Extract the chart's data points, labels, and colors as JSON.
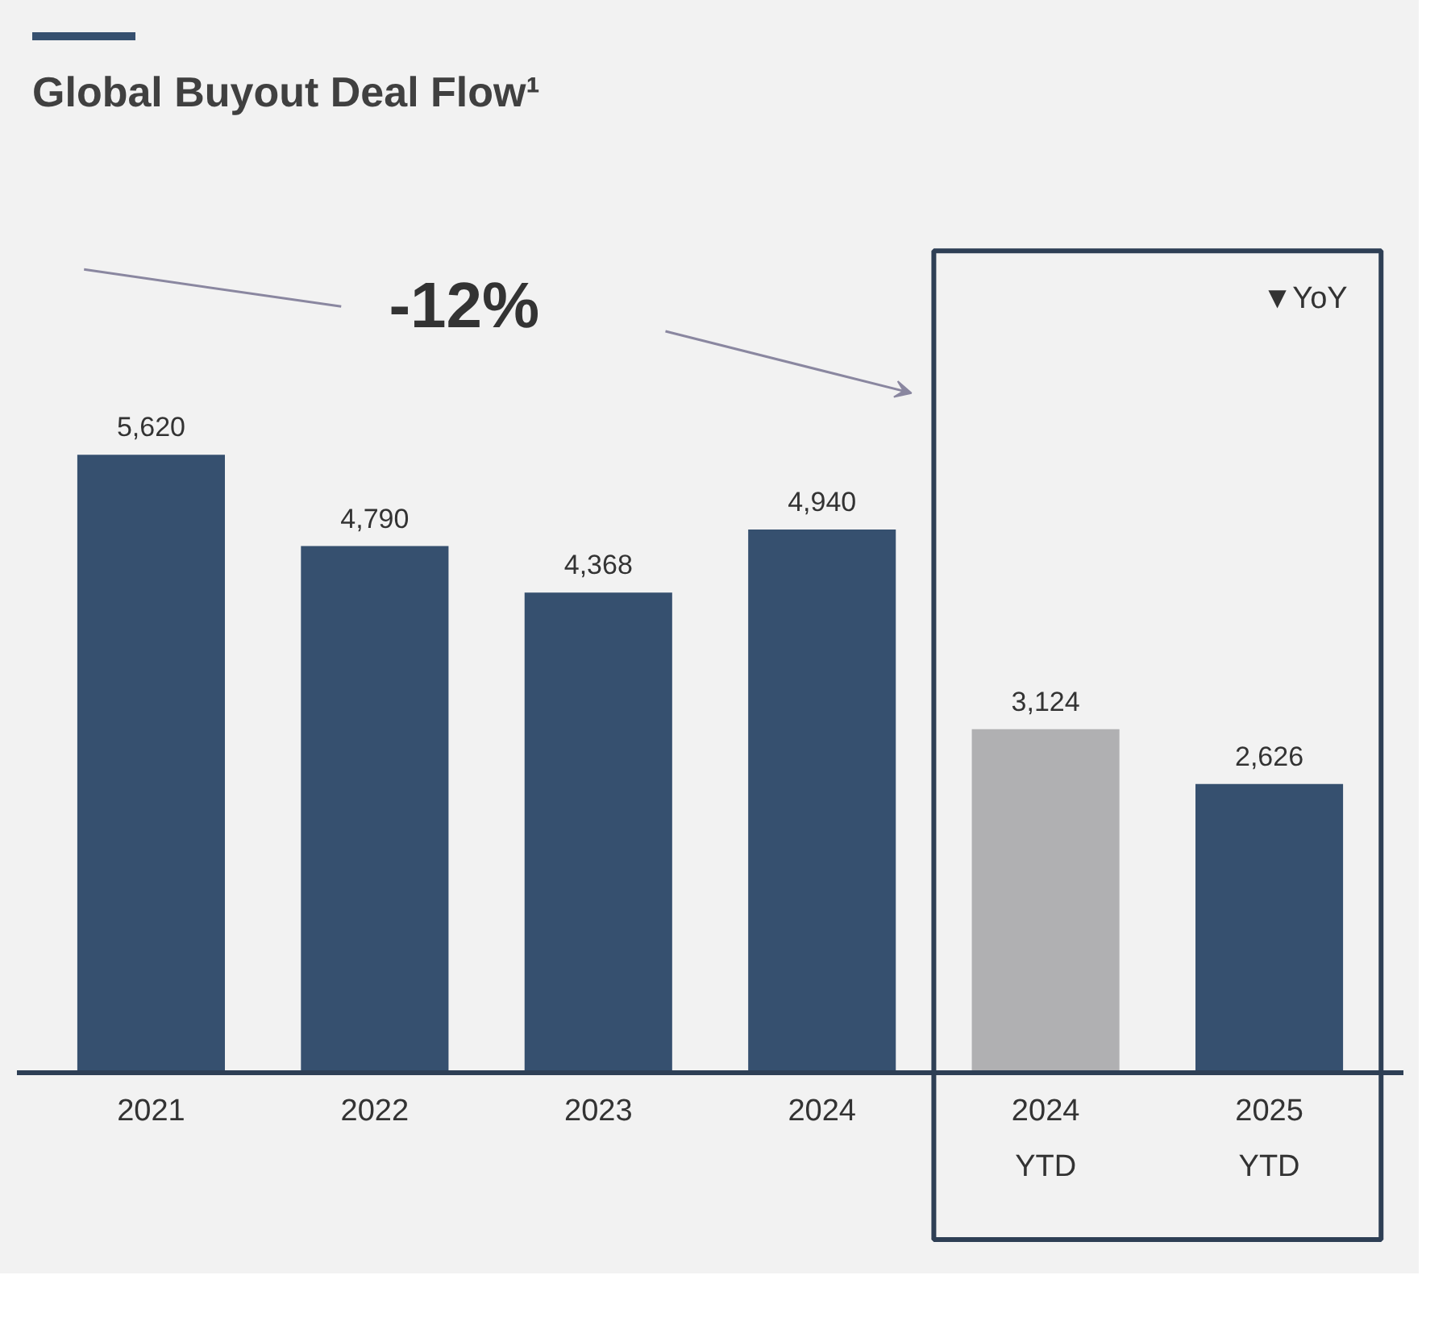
{
  "chart_data": {
    "type": "bar",
    "title": "Global Buyout Deal Flow¹",
    "categories": [
      "2021",
      "2022",
      "2023",
      "2024",
      "2024\nYTD",
      "2025\nYTD"
    ],
    "values": [
      5620,
      4790,
      4368,
      4940,
      3124,
      2626
    ],
    "value_labels": [
      "5,620",
      "4,790",
      "4,368",
      "4,940",
      "3,124",
      "2,626"
    ],
    "colors": [
      "#36506f",
      "#36506f",
      "#36506f",
      "#36506f",
      "#b0b0b2",
      "#36506f"
    ],
    "annotations": [
      "-12%",
      "▼YoY"
    ]
  }
}
